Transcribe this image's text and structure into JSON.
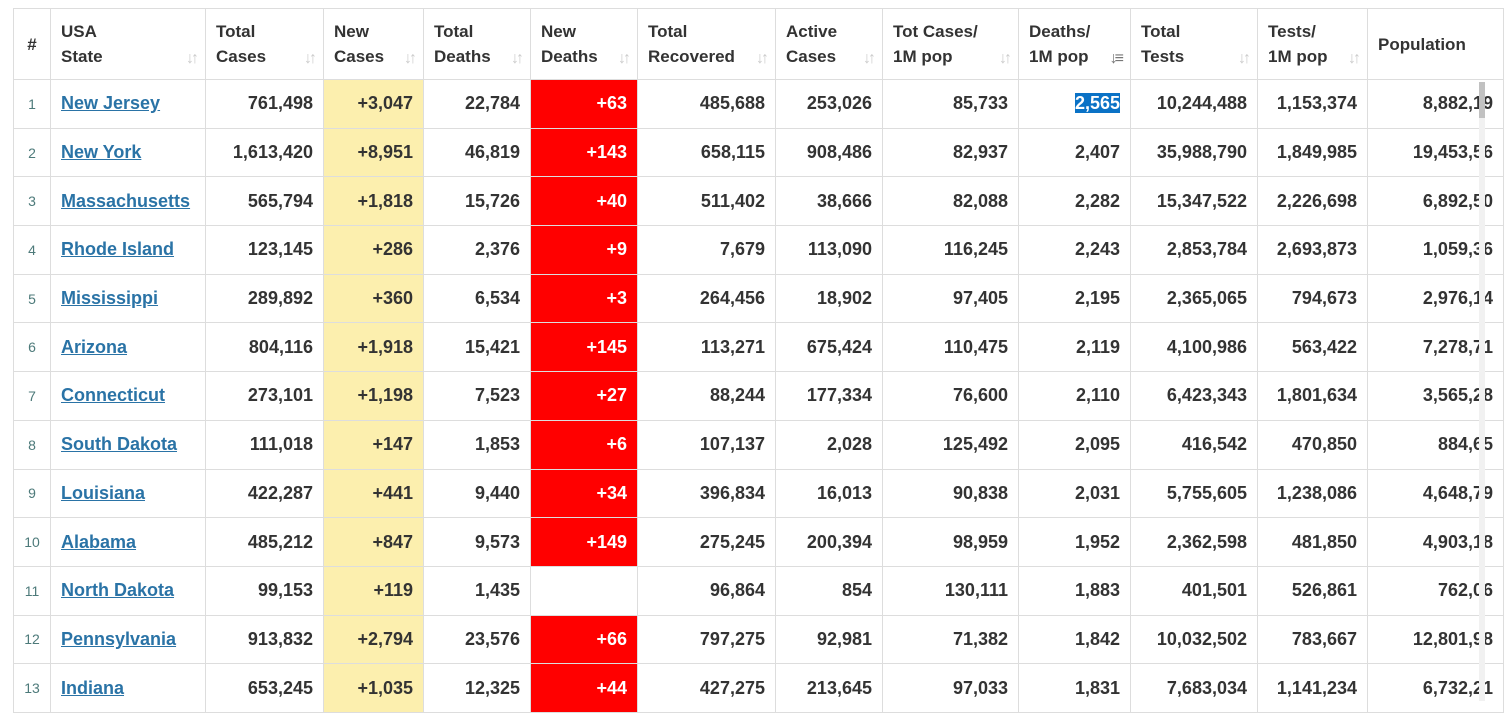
{
  "columns": [
    {
      "line1": "#",
      "line2": "",
      "sort": "none"
    },
    {
      "line1": "USA",
      "line2": "State",
      "sort": "both"
    },
    {
      "line1": "Total",
      "line2": "Cases",
      "sort": "both"
    },
    {
      "line1": "New",
      "line2": "Cases",
      "sort": "both"
    },
    {
      "line1": "Total",
      "line2": "Deaths",
      "sort": "both"
    },
    {
      "line1": "New",
      "line2": "Deaths",
      "sort": "both"
    },
    {
      "line1": "Total",
      "line2": "Recovered",
      "sort": "both"
    },
    {
      "line1": "Active",
      "line2": "Cases",
      "sort": "both"
    },
    {
      "line1": "Tot Cases/",
      "line2": "1M pop",
      "sort": "both"
    },
    {
      "line1": "Deaths/",
      "line2": "1M pop",
      "sort": "desc"
    },
    {
      "line1": "Total",
      "line2": "Tests",
      "sort": "both"
    },
    {
      "line1": "Tests/",
      "line2": "1M pop",
      "sort": "both"
    },
    {
      "line1": "",
      "line2": "Population",
      "sort": "none"
    }
  ],
  "rows": [
    {
      "rank": "1",
      "state": "New Jersey",
      "total_cases": "761,498",
      "new_cases": "+3,047",
      "total_deaths": "22,784",
      "new_deaths": "+63",
      "total_recovered": "485,688",
      "active_cases": "253,026",
      "cases_per_m": "85,733",
      "deaths_per_m": "2,565",
      "total_tests": "10,244,488",
      "tests_per_m": "1,153,374",
      "population": "8,882,19"
    },
    {
      "rank": "2",
      "state": "New York",
      "total_cases": "1,613,420",
      "new_cases": "+8,951",
      "total_deaths": "46,819",
      "new_deaths": "+143",
      "total_recovered": "658,115",
      "active_cases": "908,486",
      "cases_per_m": "82,937",
      "deaths_per_m": "2,407",
      "total_tests": "35,988,790",
      "tests_per_m": "1,849,985",
      "population": "19,453,56"
    },
    {
      "rank": "3",
      "state": "Massachusetts",
      "total_cases": "565,794",
      "new_cases": "+1,818",
      "total_deaths": "15,726",
      "new_deaths": "+40",
      "total_recovered": "511,402",
      "active_cases": "38,666",
      "cases_per_m": "82,088",
      "deaths_per_m": "2,282",
      "total_tests": "15,347,522",
      "tests_per_m": "2,226,698",
      "population": "6,892,50"
    },
    {
      "rank": "4",
      "state": "Rhode Island",
      "total_cases": "123,145",
      "new_cases": "+286",
      "total_deaths": "2,376",
      "new_deaths": "+9",
      "total_recovered": "7,679",
      "active_cases": "113,090",
      "cases_per_m": "116,245",
      "deaths_per_m": "2,243",
      "total_tests": "2,853,784",
      "tests_per_m": "2,693,873",
      "population": "1,059,36"
    },
    {
      "rank": "5",
      "state": "Mississippi",
      "total_cases": "289,892",
      "new_cases": "+360",
      "total_deaths": "6,534",
      "new_deaths": "+3",
      "total_recovered": "264,456",
      "active_cases": "18,902",
      "cases_per_m": "97,405",
      "deaths_per_m": "2,195",
      "total_tests": "2,365,065",
      "tests_per_m": "794,673",
      "population": "2,976,14"
    },
    {
      "rank": "6",
      "state": "Arizona",
      "total_cases": "804,116",
      "new_cases": "+1,918",
      "total_deaths": "15,421",
      "new_deaths": "+145",
      "total_recovered": "113,271",
      "active_cases": "675,424",
      "cases_per_m": "110,475",
      "deaths_per_m": "2,119",
      "total_tests": "4,100,986",
      "tests_per_m": "563,422",
      "population": "7,278,71"
    },
    {
      "rank": "7",
      "state": "Connecticut",
      "total_cases": "273,101",
      "new_cases": "+1,198",
      "total_deaths": "7,523",
      "new_deaths": "+27",
      "total_recovered": "88,244",
      "active_cases": "177,334",
      "cases_per_m": "76,600",
      "deaths_per_m": "2,110",
      "total_tests": "6,423,343",
      "tests_per_m": "1,801,634",
      "population": "3,565,28"
    },
    {
      "rank": "8",
      "state": "South Dakota",
      "total_cases": "111,018",
      "new_cases": "+147",
      "total_deaths": "1,853",
      "new_deaths": "+6",
      "total_recovered": "107,137",
      "active_cases": "2,028",
      "cases_per_m": "125,492",
      "deaths_per_m": "2,095",
      "total_tests": "416,542",
      "tests_per_m": "470,850",
      "population": "884,65"
    },
    {
      "rank": "9",
      "state": "Louisiana",
      "total_cases": "422,287",
      "new_cases": "+441",
      "total_deaths": "9,440",
      "new_deaths": "+34",
      "total_recovered": "396,834",
      "active_cases": "16,013",
      "cases_per_m": "90,838",
      "deaths_per_m": "2,031",
      "total_tests": "5,755,605",
      "tests_per_m": "1,238,086",
      "population": "4,648,79"
    },
    {
      "rank": "10",
      "state": "Alabama",
      "total_cases": "485,212",
      "new_cases": "+847",
      "total_deaths": "9,573",
      "new_deaths": "+149",
      "total_recovered": "275,245",
      "active_cases": "200,394",
      "cases_per_m": "98,959",
      "deaths_per_m": "1,952",
      "total_tests": "2,362,598",
      "tests_per_m": "481,850",
      "population": "4,903,18"
    },
    {
      "rank": "11",
      "state": "North Dakota",
      "total_cases": "99,153",
      "new_cases": "+119",
      "total_deaths": "1,435",
      "new_deaths": "",
      "total_recovered": "96,864",
      "active_cases": "854",
      "cases_per_m": "130,111",
      "deaths_per_m": "1,883",
      "total_tests": "401,501",
      "tests_per_m": "526,861",
      "population": "762,06"
    },
    {
      "rank": "12",
      "state": "Pennsylvania",
      "total_cases": "913,832",
      "new_cases": "+2,794",
      "total_deaths": "23,576",
      "new_deaths": "+66",
      "total_recovered": "797,275",
      "active_cases": "92,981",
      "cases_per_m": "71,382",
      "deaths_per_m": "1,842",
      "total_tests": "10,032,502",
      "tests_per_m": "783,667",
      "population": "12,801,98"
    },
    {
      "rank": "13",
      "state": "Indiana",
      "total_cases": "653,245",
      "new_cases": "+1,035",
      "total_deaths": "12,325",
      "new_deaths": "+44",
      "total_recovered": "427,275",
      "active_cases": "213,645",
      "cases_per_m": "97,033",
      "deaths_per_m": "1,831",
      "total_tests": "7,683,034",
      "tests_per_m": "1,141,234",
      "population": "6,732,21"
    }
  ],
  "selection": {
    "row": 0,
    "column": "deaths_per_m"
  },
  "colors": {
    "new_cases_bg": "#fcefae",
    "new_deaths_bg": "#ff0000",
    "link": "#2a73a6",
    "selection_bg": "#0a72c6"
  },
  "icons": {
    "sort_both": "sort-both-icon",
    "sort_desc": "sort-descending-icon"
  }
}
